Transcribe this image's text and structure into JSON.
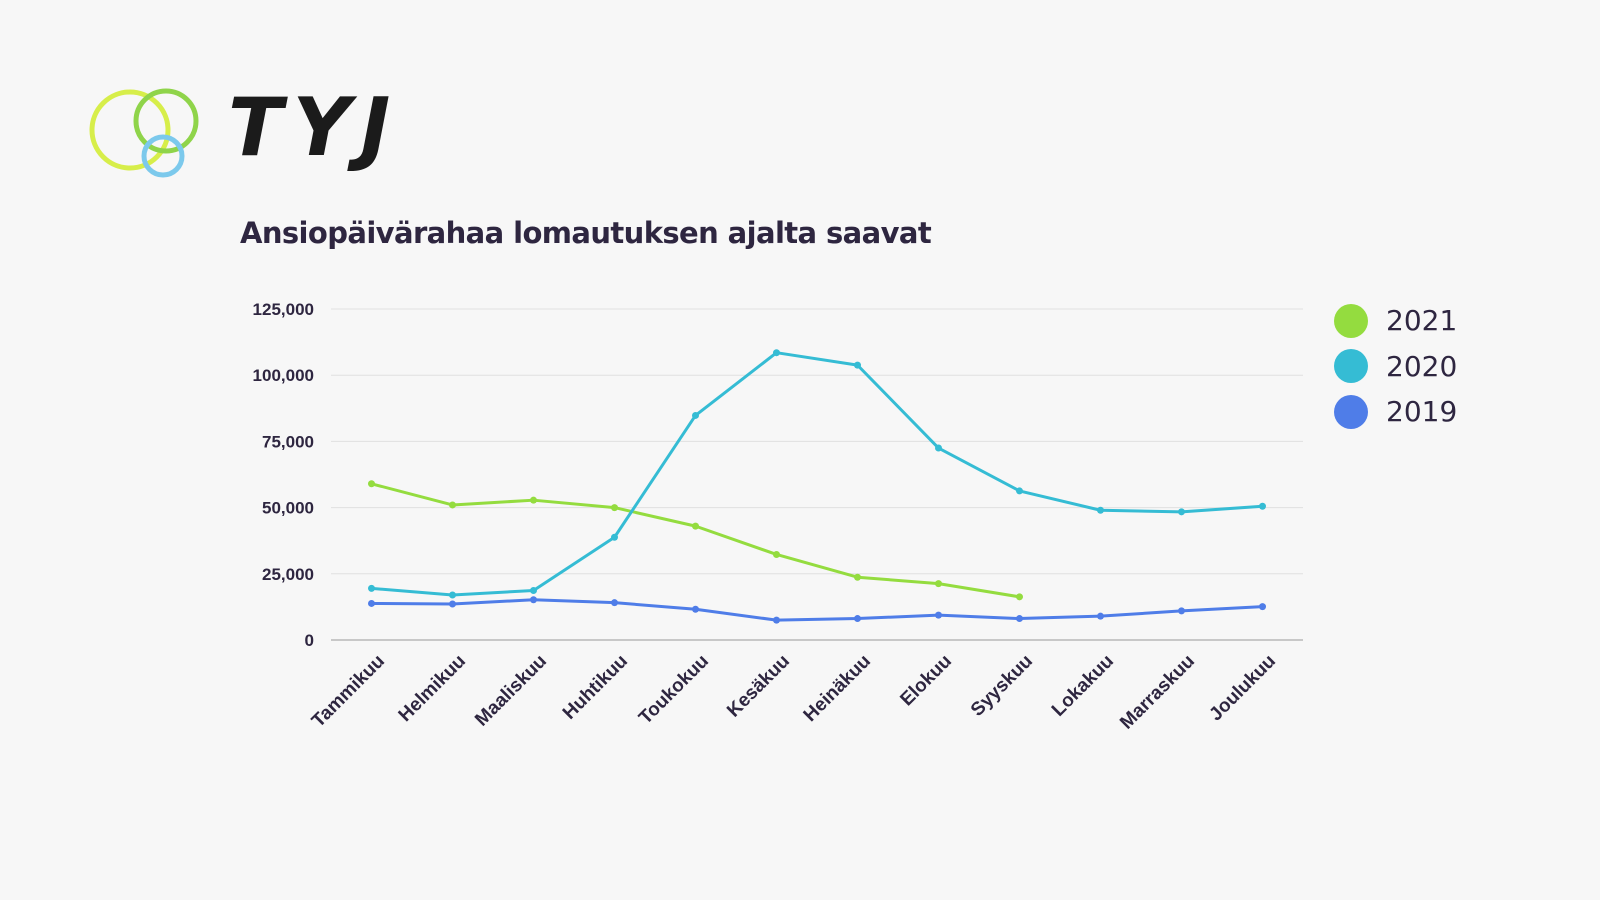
{
  "logo": {
    "text": "TYJ",
    "ring_colors": [
      "#d7ee4a",
      "#8fd44a",
      "#7cc9ec"
    ]
  },
  "chart_data": {
    "type": "line",
    "title": "Ansiopäivärahaa lomautuksen ajalta saavat",
    "xlabel": "",
    "ylabel": "",
    "categories": [
      "Tammikuu",
      "Helmikuu",
      "Maaliskuu",
      "Huhtikuu",
      "Toukokuu",
      "Kesäkuu",
      "Heinäkuu",
      "Elokuu",
      "Syyskuu",
      "Lokakuu",
      "Marraskuu",
      "Joulukuu"
    ],
    "ylim": [
      0,
      125000
    ],
    "yticks": [
      0,
      25000,
      50000,
      75000,
      100000,
      125000
    ],
    "ytick_labels": [
      "0",
      "25,000",
      "50,000",
      "75,000",
      "100,000",
      "125,000"
    ],
    "grid": true,
    "legend_position": "right",
    "series": [
      {
        "name": "2021",
        "color": "#94dc3f",
        "values": [
          59000,
          51000,
          52800,
          50000,
          43000,
          32300,
          23700,
          21300,
          16300,
          null,
          null,
          null
        ]
      },
      {
        "name": "2020",
        "color": "#35bcd4",
        "values": [
          19500,
          17000,
          18700,
          38800,
          84800,
          108500,
          103800,
          72500,
          56300,
          49000,
          48400,
          50500
        ]
      },
      {
        "name": "2019",
        "color": "#4f7de8",
        "values": [
          13800,
          13600,
          15200,
          14100,
          11600,
          7500,
          8100,
          9400,
          8100,
          9000,
          11000,
          12600
        ]
      }
    ]
  }
}
